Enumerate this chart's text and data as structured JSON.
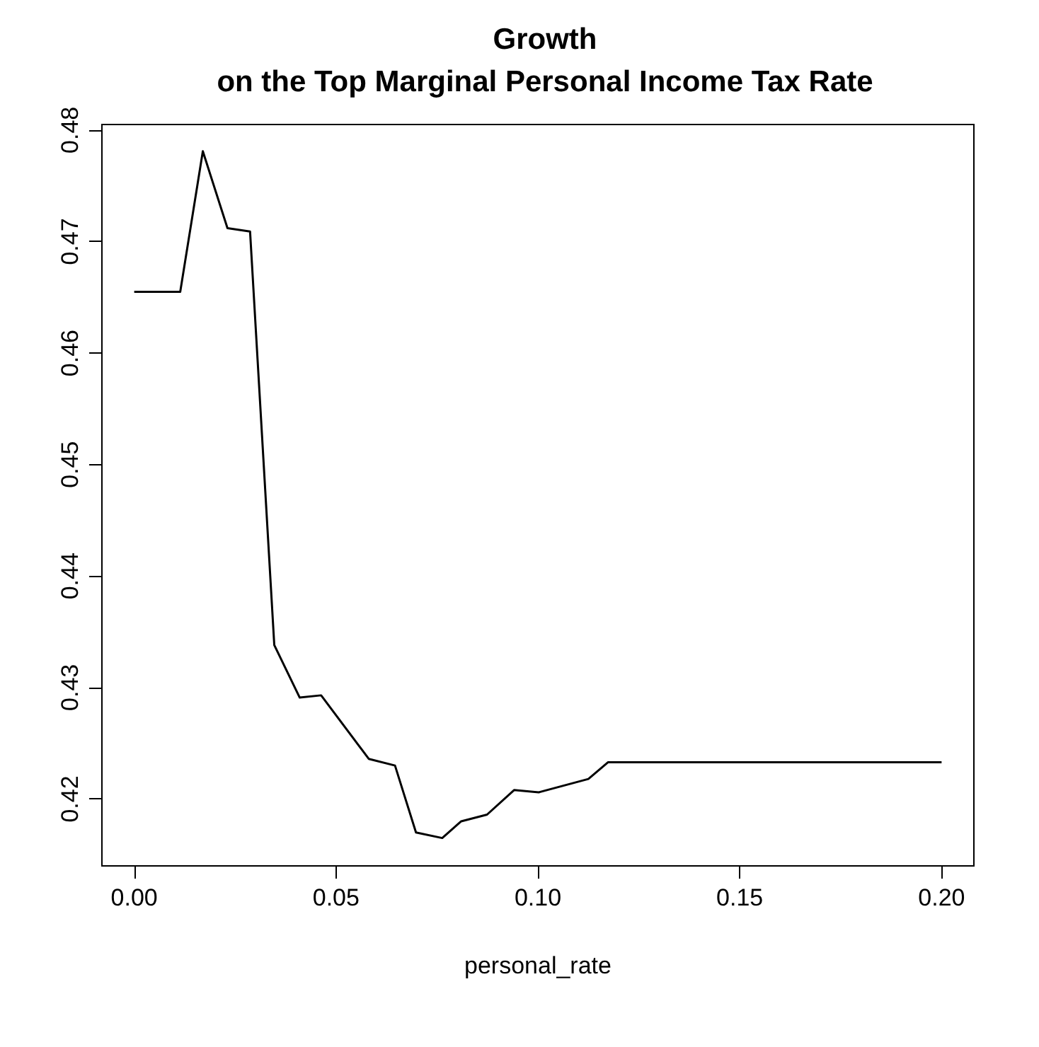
{
  "chart_data": {
    "type": "line",
    "title": "Growth\non the Top Marginal Personal Income Tax Rate",
    "xlabel": "personal_rate",
    "x": [
      0,
      0.0114,
      0.017,
      0.0231,
      0.0287,
      0.0347,
      0.041,
      0.0463,
      0.0581,
      0.0646,
      0.0698,
      0.0763,
      0.081,
      0.0874,
      0.0941,
      0.1002,
      0.1125,
      0.1174,
      0.2
    ],
    "series": [
      {
        "color": "#000000",
        "values": [
          0.4655,
          0.4655,
          0.4781,
          0.4712,
          0.4709,
          0.4338,
          0.4291,
          0.4293,
          0.4236,
          0.423,
          0.417,
          0.4165,
          0.418,
          0.4186,
          0.4208,
          0.4206,
          0.4218,
          0.4233,
          0.4233
        ]
      }
    ],
    "xlim": [
      -0.008,
      0.208
    ],
    "xticks": [
      {
        "value": 0,
        "label": "0.00"
      },
      {
        "value": 0.05,
        "label": "0.05"
      },
      {
        "value": 0.1,
        "label": "0.10"
      },
      {
        "value": 0.15,
        "label": "0.15"
      },
      {
        "value": 0.2,
        "label": "0.20"
      }
    ],
    "ylim": [
      0.414,
      0.4805
    ],
    "yticks": [
      0.42,
      0.43,
      0.44,
      0.45,
      0.46,
      0.47,
      0.48
    ],
    "marker": "none",
    "line_style": "solid"
  }
}
